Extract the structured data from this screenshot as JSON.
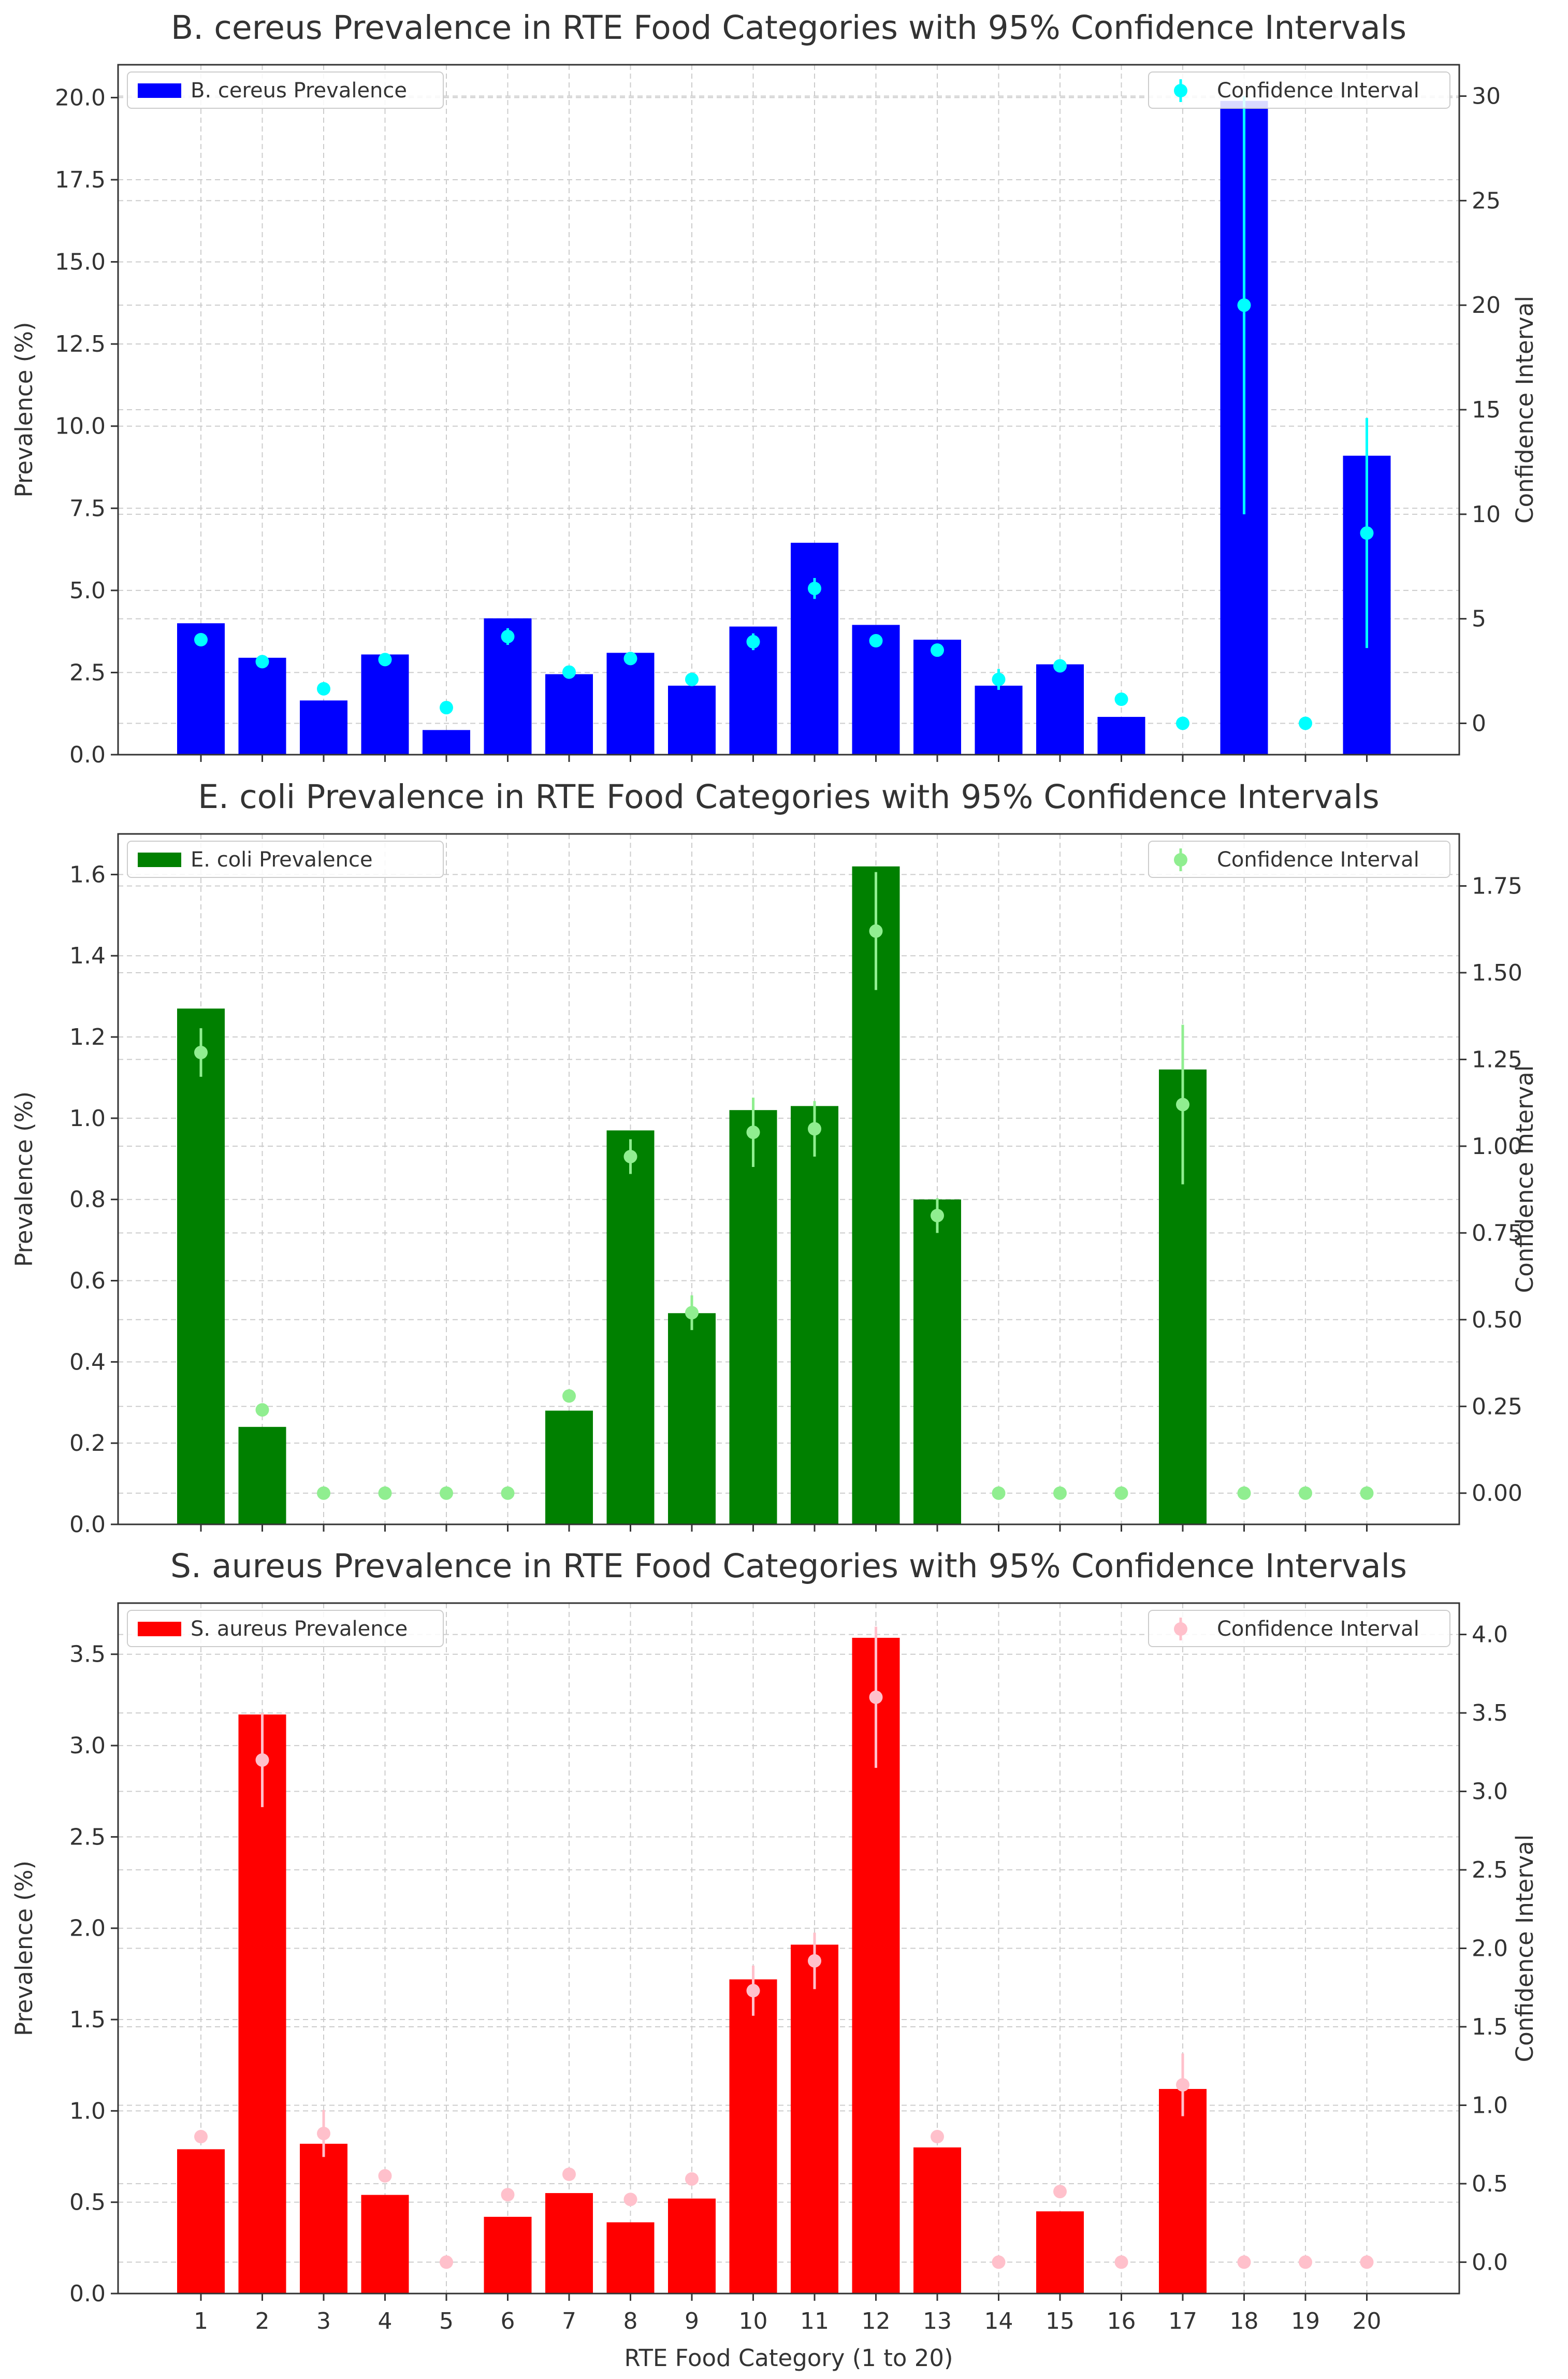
{
  "x_axis_label": "RTE Food Category (1 to 20)",
  "y_left_label": "Prevalence (%)",
  "y_right_label": "Confidence Interval",
  "chart_data": [
    {
      "type": "bar",
      "title": "B. cereus Prevalence in RTE Food Categories with 95% Confidence Intervals",
      "bar_legend": "B. cereus Prevalence",
      "ci_legend": "Confidence Interval",
      "bar_color": "#0000ff",
      "ci_color": "#00ffff",
      "categories": [
        "1",
        "2",
        "3",
        "4",
        "5",
        "6",
        "7",
        "8",
        "9",
        "10",
        "11",
        "12",
        "13",
        "14",
        "15",
        "16",
        "17",
        "18",
        "19",
        "20"
      ],
      "values": [
        4.0,
        2.95,
        1.65,
        3.05,
        0.75,
        4.15,
        2.45,
        3.1,
        2.1,
        3.9,
        6.45,
        3.95,
        3.5,
        2.1,
        2.75,
        1.15,
        0,
        19.9,
        0,
        9.1
      ],
      "ylim": [
        0,
        21
      ],
      "yticks": [
        0.0,
        2.5,
        5.0,
        7.5,
        10.0,
        12.5,
        15.0,
        17.5,
        20.0
      ],
      "ci_centers": [
        4.0,
        2.95,
        1.65,
        3.05,
        0.75,
        4.15,
        2.45,
        3.1,
        2.1,
        3.9,
        6.45,
        3.95,
        3.5,
        2.1,
        2.75,
        1.15,
        0,
        20.0,
        0,
        9.1
      ],
      "ci_half_widths": [
        0.2,
        0.15,
        0.3,
        0.2,
        0.3,
        0.4,
        0.2,
        0.2,
        0.3,
        0.4,
        0.5,
        0.3,
        0.2,
        0.5,
        0.2,
        0.2,
        0,
        10.0,
        0,
        5.5
      ],
      "ci_ylim": [
        -1.5,
        31.5
      ],
      "ci_ticks": [
        0,
        5,
        10,
        15,
        20,
        25,
        30
      ]
    },
    {
      "type": "bar",
      "title": "E. coli Prevalence in RTE Food Categories with 95% Confidence Intervals",
      "bar_legend": "E. coli Prevalence",
      "ci_legend": "Confidence Interval",
      "bar_color": "#008000",
      "ci_color": "#90ee90",
      "categories": [
        "1",
        "2",
        "3",
        "4",
        "5",
        "6",
        "7",
        "8",
        "9",
        "10",
        "11",
        "12",
        "13",
        "14",
        "15",
        "16",
        "17",
        "18",
        "19",
        "20"
      ],
      "values": [
        1.27,
        0.24,
        0,
        0,
        0,
        0,
        0.28,
        0.97,
        0.52,
        1.02,
        1.03,
        1.62,
        0.8,
        0,
        0,
        0,
        1.12,
        0,
        0,
        0
      ],
      "ylim": [
        0,
        1.7
      ],
      "yticks": [
        0.0,
        0.2,
        0.4,
        0.6,
        0.8,
        1.0,
        1.2,
        1.4,
        1.6
      ],
      "ci_centers": [
        1.27,
        0.24,
        0,
        0,
        0,
        0,
        0.28,
        0.97,
        0.52,
        1.04,
        1.05,
        1.62,
        0.8,
        0,
        0,
        0,
        1.12,
        0,
        0,
        0
      ],
      "ci_half_widths": [
        0.07,
        0.01,
        0,
        0,
        0,
        0,
        0.01,
        0.05,
        0.05,
        0.1,
        0.08,
        0.17,
        0.05,
        0,
        0,
        0,
        0.23,
        0,
        0,
        0
      ],
      "ci_ylim": [
        -0.09,
        1.9
      ],
      "ci_ticks": [
        0.0,
        0.25,
        0.5,
        0.75,
        1.0,
        1.25,
        1.5,
        1.75
      ]
    },
    {
      "type": "bar",
      "title": "S. aureus Prevalence in RTE Food Categories with 95% Confidence Intervals",
      "bar_legend": "S. aureus Prevalence",
      "ci_legend": "Confidence Interval",
      "bar_color": "#ff0000",
      "ci_color": "#ffc0cb",
      "categories": [
        "1",
        "2",
        "3",
        "4",
        "5",
        "6",
        "7",
        "8",
        "9",
        "10",
        "11",
        "12",
        "13",
        "14",
        "15",
        "16",
        "17",
        "18",
        "19",
        "20"
      ],
      "values": [
        0.79,
        3.17,
        0.82,
        0.54,
        0,
        0.42,
        0.55,
        0.39,
        0.52,
        1.72,
        1.91,
        3.59,
        0.8,
        0,
        0.45,
        0,
        1.12,
        0,
        0,
        0
      ],
      "ylim": [
        0,
        3.78
      ],
      "yticks": [
        0.0,
        0.5,
        1.0,
        1.5,
        2.0,
        2.5,
        3.0,
        3.5
      ],
      "ci_centers": [
        0.8,
        3.2,
        0.82,
        0.55,
        0,
        0.43,
        0.56,
        0.4,
        0.53,
        1.73,
        1.92,
        3.6,
        0.8,
        0,
        0.45,
        0,
        1.13,
        0,
        0,
        0
      ],
      "ci_half_widths": [
        0.03,
        0.3,
        0.15,
        0.02,
        0,
        0.02,
        0.02,
        0.02,
        0.02,
        0.16,
        0.18,
        0.45,
        0.02,
        0,
        0.02,
        0,
        0.2,
        0,
        0,
        0
      ],
      "ci_ylim": [
        -0.2,
        4.2
      ],
      "ci_ticks": [
        0.0,
        0.5,
        1.0,
        1.5,
        2.0,
        2.5,
        3.0,
        3.5,
        4.0
      ]
    }
  ]
}
